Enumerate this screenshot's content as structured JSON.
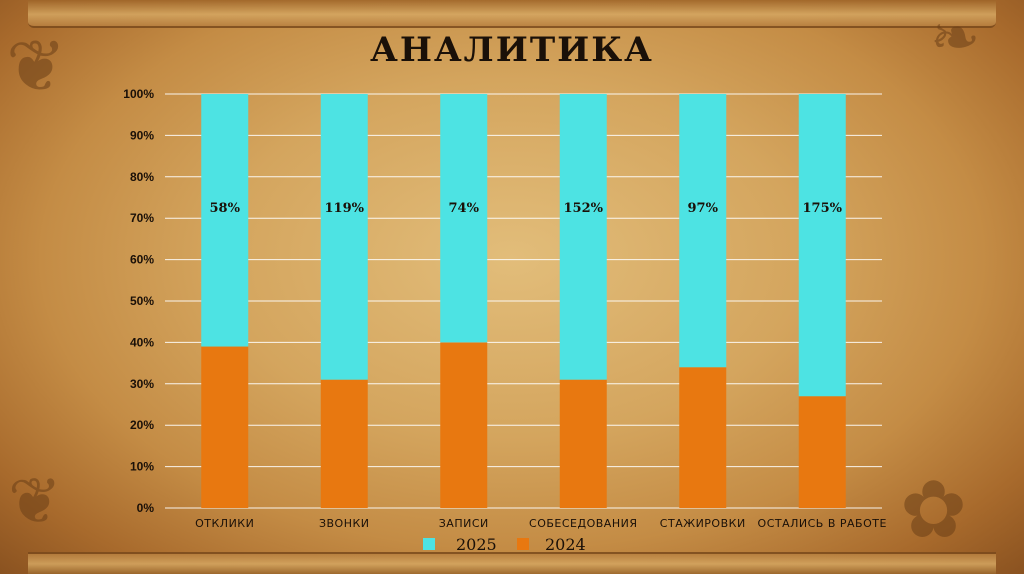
{
  "title": "АНАЛИТИКА",
  "colors": {
    "series_2025": "#4de3e3",
    "series_2024": "#e87810",
    "grid": "#ffffff",
    "text": "#1a1008"
  },
  "chart_data": {
    "type": "bar",
    "stacked": "percent",
    "title": "АНАЛИТИКА",
    "categories": [
      "ОТКЛИКИ",
      "ЗВОНКИ",
      "ЗАПИСИ",
      "СОБЕСЕДОВАНИЯ",
      "СТАЖИРОВКИ",
      "ОСТАЛИСЬ В РАБОТЕ"
    ],
    "series": [
      {
        "name": "2024",
        "values": [
          39,
          31,
          40,
          31,
          34,
          27
        ]
      },
      {
        "name": "2025",
        "values": [
          61,
          69,
          60,
          69,
          66,
          73
        ]
      }
    ],
    "data_labels": [
      "58%",
      "119%",
      "74%",
      "152%",
      "97%",
      "175%"
    ],
    "yticks": [
      "0%",
      "10%",
      "20%",
      "30%",
      "40%",
      "50%",
      "60%",
      "70%",
      "80%",
      "90%",
      "100%"
    ],
    "ylim": [
      0,
      100
    ],
    "grid": true,
    "legend": {
      "placement": "bottom",
      "entries": [
        "2025",
        "2024"
      ]
    }
  }
}
